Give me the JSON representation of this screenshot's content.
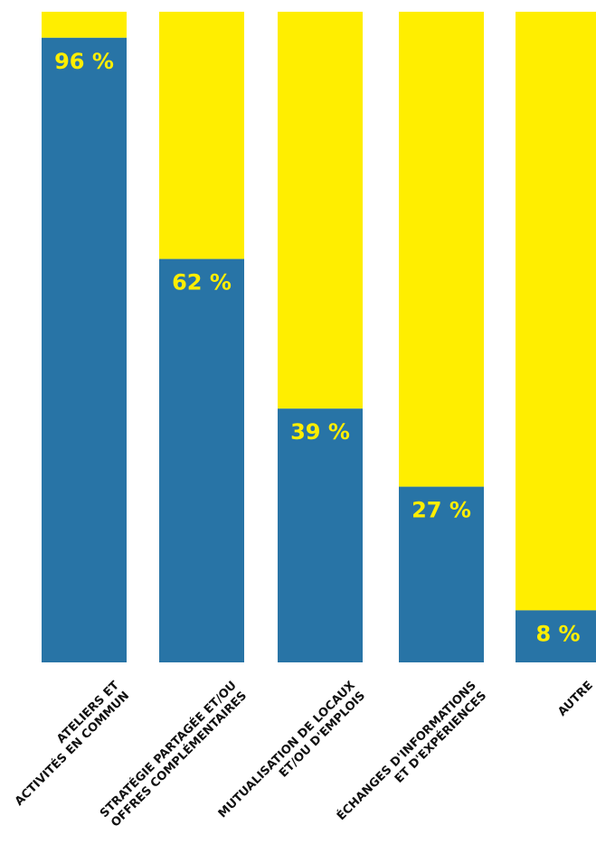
{
  "chart_data": {
    "type": "bar",
    "stacked": true,
    "categories": [
      [
        "ATELIERS ET",
        "ACTIVITÉS EN COMMUN"
      ],
      [
        "STRATÉGIE PARTAGÉE ET/OU",
        "OFFRES COMPLÉMENTAIRES"
      ],
      [
        "MUTUALISATION DE LOCAUX",
        "ET/OU D'EMPLOIS"
      ],
      [
        "ÉCHANGES D'INFORMATIONS",
        "ET D'EXPÉRIENCES"
      ],
      [
        "AUTRE"
      ]
    ],
    "values": [
      96,
      62,
      39,
      27,
      8
    ],
    "value_labels": [
      "96 %",
      "62 %",
      "39 %",
      "27 %",
      "8 %"
    ],
    "ylim": [
      0,
      100
    ],
    "title": "",
    "xlabel": "",
    "ylabel": "",
    "grid": false,
    "colors": {
      "value": "#2874a6",
      "remainder": "#ffee00",
      "label": "#ffee00"
    }
  }
}
